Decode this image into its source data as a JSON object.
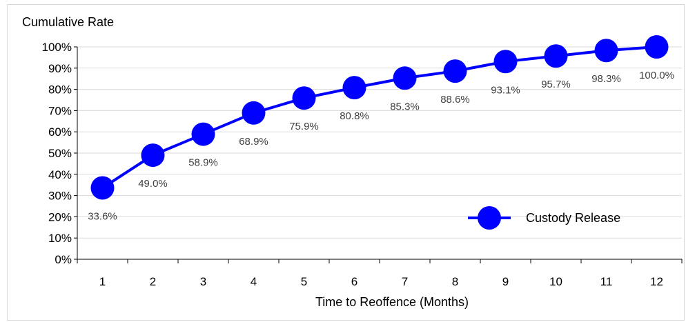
{
  "chart_data": {
    "type": "line",
    "ylabel": "Cumulative Rate",
    "xlabel": "Time to Reoffence (Months)",
    "categories": [
      "1",
      "2",
      "3",
      "4",
      "5",
      "6",
      "7",
      "8",
      "9",
      "10",
      "11",
      "12"
    ],
    "y_ticks": [
      "0%",
      "10%",
      "20%",
      "30%",
      "40%",
      "50%",
      "60%",
      "70%",
      "80%",
      "90%",
      "100%"
    ],
    "ylim": [
      0,
      100
    ],
    "grid": true,
    "legend_position": "bottom-right",
    "series": [
      {
        "name": "Custody Release",
        "color": "#0000ff",
        "values": [
          33.6,
          49.0,
          58.9,
          68.9,
          75.9,
          80.8,
          85.3,
          88.6,
          93.1,
          95.7,
          98.3,
          100.0
        ],
        "labels": [
          "33.6%",
          "49.0%",
          "58.9%",
          "68.9%",
          "75.9%",
          "80.8%",
          "85.3%",
          "88.6%",
          "93.1%",
          "95.7%",
          "98.3%",
          "100.0%"
        ]
      }
    ]
  }
}
